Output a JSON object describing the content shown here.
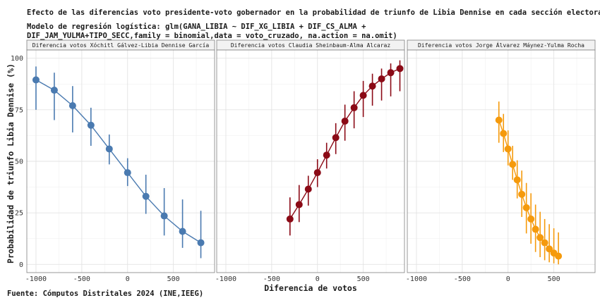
{
  "chart_data": {
    "type": "line",
    "title": "Efecto de las diferencias voto presidente-voto gobernador en la probabilidad de triunfo de Libia Dennise en cada sección electoral",
    "subtitle": [
      "Modelo de regresión logística: glm(GANA_LIBIA ~ DIF_XG_LIBIA + DIF_CS_ALMA +",
      "DIF_JAM_YULMA+TIPO_SECC,family = binomial,data = voto_cruzado, na.action = na.omit)"
    ],
    "xlabel": "Diferencia de votos",
    "ylabel": "Probabilidad de triunfo Libia Dennise (%)",
    "caption": "Fuente: Cómputos Distritales 2024 (INE,IEEG)",
    "xlim": [
      -1100,
      950
    ],
    "ylim": [
      -4,
      104
    ],
    "x_ticks": [
      -1000,
      -500,
      0,
      500
    ],
    "x_tick_labels": [
      "-1000",
      "-500",
      "0",
      "500"
    ],
    "y_ticks": [
      0,
      25,
      50,
      75,
      100
    ],
    "y_tick_labels": [
      "0",
      "25",
      "50",
      "75",
      "100"
    ],
    "grid": true,
    "panels": [
      {
        "label": "Diferencia votos Xóchitl Gálvez-Libia Dennise García",
        "color": "#4a7ab0",
        "x": [
          -1000,
          -800,
          -600,
          -400,
          -200,
          0,
          200,
          400,
          600,
          800
        ],
        "y": [
          89.5,
          84.5,
          77,
          67.5,
          56,
          44.5,
          33,
          23.5,
          16,
          10.5
        ],
        "lower": [
          75,
          70,
          64,
          57.5,
          48.5,
          38,
          24.5,
          14,
          8,
          3
        ],
        "upper": [
          96,
          93,
          86.5,
          76,
          63,
          51.5,
          43.5,
          37,
          31.5,
          26
        ]
      },
      {
        "label": "Diferencia votos Claudia Sheinbaum-Alma Alcaraz",
        "color": "#8b0a16",
        "x": [
          -300,
          -200,
          -100,
          0,
          100,
          200,
          300,
          400,
          500,
          600,
          700,
          800,
          900
        ],
        "y": [
          22,
          29,
          36.5,
          44.5,
          53,
          61.5,
          69.5,
          76,
          82,
          86.5,
          90,
          93,
          95
        ],
        "lower": [
          14,
          20.5,
          28.5,
          37.5,
          46.5,
          53.5,
          60,
          66,
          71.5,
          77,
          79.5,
          81.5,
          84
        ],
        "upper": [
          32.5,
          38.5,
          43,
          51,
          59,
          68.5,
          77.5,
          84,
          89,
          92.5,
          95,
          97.5,
          99
        ]
      },
      {
        "label": "Diferencia votos Jorge Álvarez Máynez-Yulma Rocha",
        "color": "#f59a0c",
        "x": [
          -100,
          -50,
          0,
          50,
          100,
          150,
          200,
          250,
          300,
          350,
          400,
          450,
          500,
          550
        ],
        "y": [
          70,
          63.5,
          56,
          48.5,
          41,
          34,
          27.5,
          22,
          17,
          13,
          10.5,
          7.5,
          5.5,
          4
        ],
        "lower": [
          59,
          54.5,
          48,
          41,
          32,
          23,
          15,
          10,
          6,
          3.5,
          2,
          1,
          0.5,
          0
        ],
        "upper": [
          79,
          73,
          65,
          57.5,
          50.5,
          45.5,
          39.5,
          34.5,
          29,
          25.5,
          22,
          19.5,
          17.5,
          15.5
        ]
      }
    ]
  }
}
